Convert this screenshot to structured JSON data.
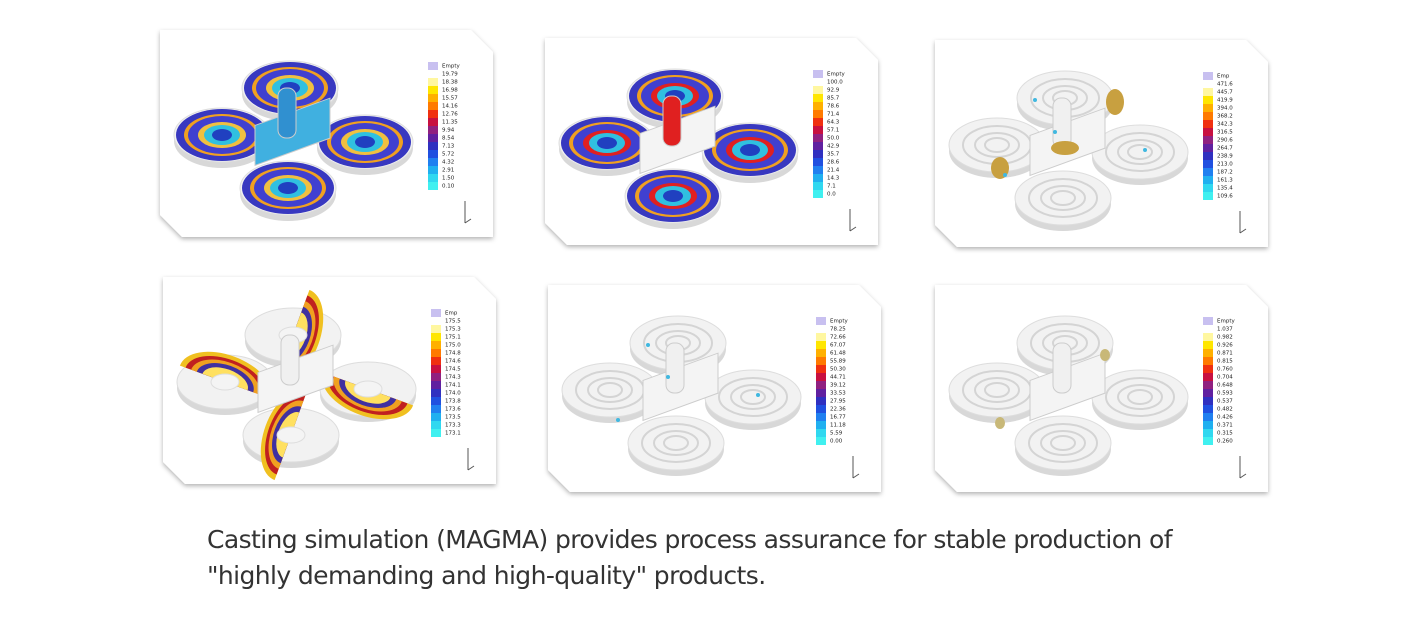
{
  "caption": [
    "Casting simulation (MAGMA) provides process assurance for stable production of",
    "\"highly demanding and high-quality\" products."
  ],
  "panels": [
    {
      "legend_title": "Empty",
      "legend": [
        "19.79",
        "18.38",
        "16.98",
        "15.57",
        "14.16",
        "12.76",
        "11.35",
        "9.94",
        "8.54",
        "7.13",
        "5.72",
        "4.32",
        "2.91",
        "1.50",
        "0.10"
      ]
    },
    {
      "legend_title": "Empty",
      "legend": [
        "100.0",
        "92.9",
        "85.7",
        "78.6",
        "71.4",
        "64.3",
        "57.1",
        "50.0",
        "42.9",
        "35.7",
        "28.6",
        "21.4",
        "14.3",
        "7.1",
        "0.0"
      ]
    },
    {
      "legend_title": "Emp",
      "legend": [
        "471.6",
        "445.7",
        "419.9",
        "394.0",
        "368.2",
        "342.3",
        "316.5",
        "290.6",
        "264.7",
        "238.9",
        "213.0",
        "187.2",
        "161.3",
        "135.4",
        "109.6"
      ]
    },
    {
      "legend_title": "Emp",
      "legend": [
        "175.5",
        "175.3",
        "175.1",
        "175.0",
        "174.8",
        "174.6",
        "174.5",
        "174.3",
        "174.1",
        "174.0",
        "173.8",
        "173.6",
        "173.5",
        "173.3",
        "173.1"
      ]
    },
    {
      "legend_title": "Empty",
      "legend": [
        "78.25",
        "72.66",
        "67.07",
        "61.48",
        "55.89",
        "50.30",
        "44.71",
        "39.12",
        "33.53",
        "27.95",
        "22.36",
        "16.77",
        "11.18",
        "5.59",
        "0.00"
      ]
    },
    {
      "legend_title": "Empty",
      "legend": [
        "1.037",
        "0.982",
        "0.926",
        "0.871",
        "0.815",
        "0.760",
        "0.704",
        "0.648",
        "0.593",
        "0.537",
        "0.482",
        "0.426",
        "0.371",
        "0.315",
        "0.260"
      ]
    }
  ]
}
